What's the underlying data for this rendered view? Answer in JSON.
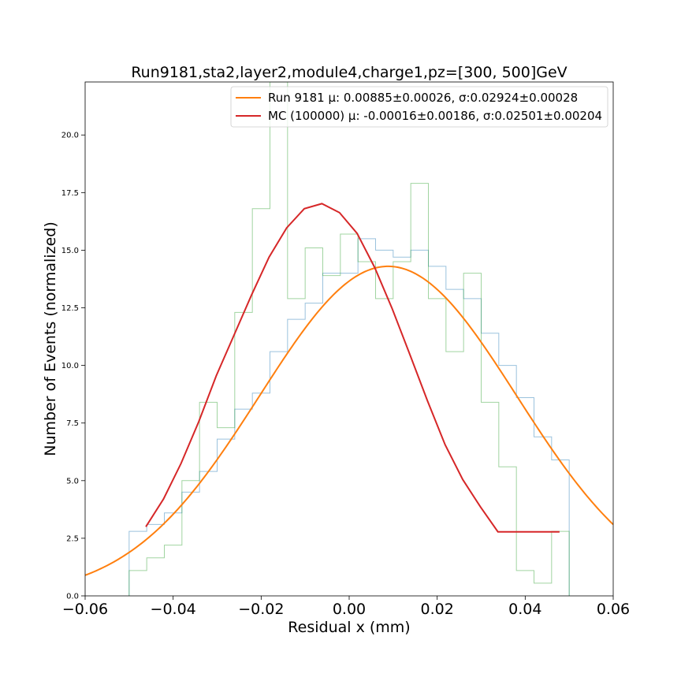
{
  "chart_data": {
    "type": "line",
    "title": "Run9181,sta2,layer2,module4,charge1,pz=[300, 500]GeV",
    "xlabel": "Residual x (mm)",
    "ylabel": "Number of Events (normalized)",
    "xlim": [
      -0.06,
      0.06
    ],
    "ylim": [
      0,
      22.3
    ],
    "grid": false,
    "legend_position": "top-right",
    "xticks": [
      "−0.06",
      "−0.04",
      "−0.02",
      "0.00",
      "0.02",
      "0.04",
      "0.06"
    ],
    "xtick_values": [
      -0.06,
      -0.04,
      -0.02,
      0.0,
      0.02,
      0.04,
      0.06
    ],
    "yticks": [
      "0.0",
      "2.5",
      "5.0",
      "7.5",
      "10.0",
      "12.5",
      "15.0",
      "17.5",
      "20.0"
    ],
    "ytick_values": [
      0,
      2.5,
      5,
      7.5,
      10,
      12.5,
      15,
      17.5,
      20
    ],
    "colors": {
      "run_fit": "#ff7f0e",
      "mc_fit": "#d62728",
      "data_hist": "#1f77b4",
      "mc_hist": "#2ca02c"
    },
    "series": [
      {
        "name": "Run 9181 μ: 0.00885±0.00026, σ:0.02924±0.00028",
        "kind": "gaussian",
        "mu": 0.00885,
        "sigma": 0.02924,
        "amplitude": 14.3,
        "x_range": [
          -0.06,
          0.06
        ]
      },
      {
        "name": "MC (100000) μ: -0.00016±0.00186, σ:0.02501±0.00204",
        "kind": "line",
        "x": [
          -0.0462,
          -0.0422,
          -0.0382,
          -0.0342,
          -0.0302,
          -0.0262,
          -0.0222,
          -0.0182,
          -0.0142,
          -0.0102,
          -0.0062,
          -0.0022,
          0.0018,
          0.0058,
          0.0098,
          0.0138,
          0.0178,
          0.0218,
          0.0258,
          0.0298,
          0.0338,
          0.0378,
          0.0418,
          0.0458,
          0.0478
        ],
        "y": [
          3.0,
          4.2,
          5.75,
          7.55,
          9.55,
          11.3,
          13.05,
          14.7,
          15.97,
          16.8,
          17.02,
          16.63,
          15.73,
          14.25,
          12.45,
          10.47,
          8.46,
          6.56,
          5.05,
          3.87,
          2.78,
          2.78,
          2.78,
          2.78,
          2.78
        ]
      },
      {
        "kind": "step_histogram",
        "bin_edges": [
          -0.05,
          -0.046,
          -0.042,
          -0.038,
          -0.034,
          -0.03,
          -0.026,
          -0.022,
          -0.018,
          -0.014,
          -0.01,
          -0.006,
          -0.002,
          0.002,
          0.006,
          0.01,
          0.014,
          0.018,
          0.022,
          0.026,
          0.03,
          0.034,
          0.038,
          0.042,
          0.046,
          0.05
        ],
        "values": [
          2.8,
          3.1,
          3.6,
          4.5,
          5.4,
          6.8,
          8.1,
          8.8,
          10.6,
          12.0,
          12.7,
          14.0,
          14.0,
          15.5,
          15.0,
          14.7,
          15.0,
          14.3,
          13.3,
          12.9,
          11.4,
          10.0,
          8.6,
          6.9,
          5.9
        ]
      },
      {
        "kind": "step_histogram",
        "bin_edges": [
          -0.05,
          -0.046,
          -0.042,
          -0.038,
          -0.034,
          -0.03,
          -0.026,
          -0.022,
          -0.018,
          -0.014,
          -0.01,
          -0.006,
          -0.002,
          0.002,
          0.006,
          0.01,
          0.014,
          0.018,
          0.022,
          0.026,
          0.03,
          0.034,
          0.038,
          0.042,
          0.046,
          0.05
        ],
        "values": [
          1.1,
          1.65,
          2.2,
          5.0,
          8.4,
          7.3,
          12.3,
          16.8,
          22.3,
          12.9,
          15.1,
          13.9,
          15.7,
          14.5,
          12.9,
          14.5,
          17.9,
          12.9,
          10.6,
          14.0,
          8.4,
          5.6,
          1.1,
          0.55,
          2.8
        ]
      }
    ]
  }
}
